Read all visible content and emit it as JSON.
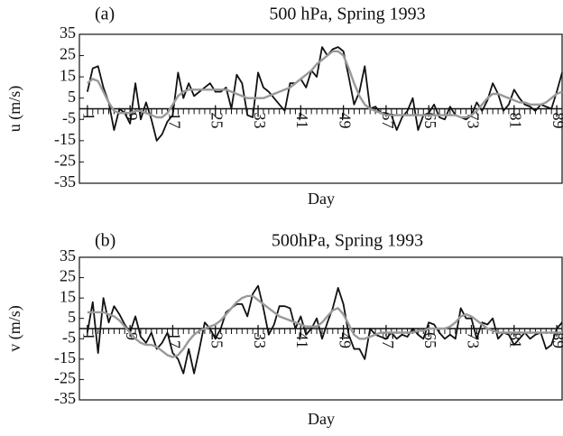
{
  "chart_data": [
    {
      "type": "line",
      "panel_label": "(a)",
      "title": "500 hPa, Spring 1993",
      "y_label": "u (m/s)",
      "x_label": "Day",
      "x": [
        1,
        2,
        3,
        4,
        5,
        6,
        7,
        8,
        9,
        10,
        11,
        12,
        13,
        14,
        15,
        16,
        17,
        18,
        19,
        20,
        21,
        22,
        23,
        24,
        25,
        26,
        27,
        28,
        29,
        30,
        31,
        32,
        33,
        34,
        35,
        36,
        37,
        38,
        39,
        40,
        41,
        42,
        43,
        44,
        45,
        46,
        47,
        48,
        49,
        50,
        51,
        52,
        53,
        54,
        55,
        56,
        57,
        58,
        59,
        60,
        61,
        62,
        63,
        64,
        65,
        66,
        67,
        68,
        69,
        70,
        71,
        72,
        73,
        74,
        75,
        76,
        77,
        78,
        79,
        80,
        81,
        82,
        83,
        84,
        85,
        86,
        87,
        88,
        89,
        90
      ],
      "series": [
        {
          "color": "#111111",
          "values": [
            8,
            19,
            20,
            10,
            3,
            -10,
            0,
            -2,
            -7,
            12,
            -5,
            3,
            -5,
            -15,
            -12,
            -6,
            -3,
            17,
            5,
            12,
            6,
            8,
            10,
            12,
            8,
            8,
            10,
            0,
            16,
            12,
            -3,
            -4,
            17,
            10,
            8,
            5,
            2,
            -1,
            12,
            12,
            14,
            10,
            18,
            15,
            29,
            25,
            28,
            29,
            27,
            15,
            2,
            8,
            20,
            0,
            1,
            -2,
            -2,
            -3,
            -10,
            -4,
            -1,
            5,
            -10,
            -3,
            -2,
            2,
            -4,
            -5,
            1,
            -3,
            -4,
            -5,
            -3,
            3,
            -1,
            4,
            12,
            7,
            -1,
            2,
            9,
            5,
            2,
            1,
            -1,
            2,
            1,
            0,
            8,
            17
          ]
        },
        {
          "color": "#999999",
          "values": [
            12,
            14,
            13,
            8,
            3,
            -1,
            -2,
            -2,
            -2,
            -1,
            -1,
            -2,
            -3,
            -4,
            -4,
            -2,
            2,
            6,
            8,
            9,
            9,
            9,
            9,
            9,
            9,
            9,
            9,
            8,
            7,
            6,
            5,
            5,
            5,
            5,
            6,
            7,
            8,
            9,
            10,
            12,
            14,
            16,
            18,
            21,
            23,
            25,
            27,
            27,
            25,
            19,
            12,
            6,
            2,
            0,
            -1,
            -2,
            -3,
            -3,
            -3,
            -3,
            -3,
            -3,
            -3,
            -3,
            -3,
            -3,
            -3,
            -3,
            -3,
            -3,
            -4,
            -4,
            -3,
            -1,
            2,
            5,
            7,
            7,
            6,
            5,
            4,
            3,
            3,
            2,
            2,
            2,
            3,
            5,
            7,
            8
          ]
        }
      ],
      "xlim": [
        -0.5,
        90
      ],
      "xticks": [
        1,
        9,
        17,
        25,
        33,
        41,
        49,
        57,
        65,
        73,
        81,
        89
      ],
      "ylim": [
        -35,
        35
      ],
      "yticks": [
        35,
        25,
        15,
        5,
        -5,
        -15,
        -25,
        -35
      ]
    },
    {
      "type": "line",
      "panel_label": "(b)",
      "title": "500hPa, Spring 1993",
      "y_label": "v (m/s)",
      "x_label": "Day",
      "x": [
        1,
        2,
        3,
        4,
        5,
        6,
        7,
        8,
        9,
        10,
        11,
        12,
        13,
        14,
        15,
        16,
        17,
        18,
        19,
        20,
        21,
        22,
        23,
        24,
        25,
        26,
        27,
        28,
        29,
        30,
        31,
        32,
        33,
        34,
        35,
        36,
        37,
        38,
        39,
        40,
        41,
        42,
        43,
        44,
        45,
        46,
        47,
        48,
        49,
        50,
        51,
        52,
        53,
        54,
        55,
        56,
        57,
        58,
        59,
        60,
        61,
        62,
        63,
        64,
        65,
        66,
        67,
        68,
        69,
        70,
        71,
        72,
        73,
        74,
        75,
        76,
        77,
        78,
        79,
        80,
        81,
        82,
        83,
        84,
        85,
        86,
        87,
        88,
        89,
        90
      ],
      "series": [
        {
          "color": "#111111",
          "values": [
            -2,
            13,
            -12,
            15,
            3,
            11,
            7,
            2,
            -2,
            6,
            -4,
            -7,
            -2,
            -10,
            -7,
            -2,
            -12,
            -15,
            -22,
            -10,
            -22,
            -10,
            3,
            0,
            -5,
            0,
            8,
            10,
            12,
            12,
            6,
            17,
            21,
            10,
            -3,
            2,
            11,
            11,
            10,
            0,
            6,
            -3,
            0,
            5,
            -5,
            3,
            10,
            20,
            12,
            -3,
            -10,
            -10,
            -15,
            0,
            -3,
            -4,
            -5,
            -2,
            -5,
            -3,
            -4,
            0,
            -3,
            -5,
            3,
            2,
            -2,
            -5,
            -3,
            -5,
            10,
            5,
            5,
            -5,
            3,
            2,
            5,
            -5,
            -2,
            -3,
            -8,
            -5,
            -2,
            -5,
            -3,
            -2,
            -10,
            -8,
            0,
            3
          ]
        },
        {
          "color": "#999999",
          "values": [
            8,
            8,
            8,
            8,
            7,
            6,
            4,
            1,
            -2,
            -5,
            -7,
            -8,
            -8,
            -9,
            -11,
            -13,
            -14,
            -13,
            -10,
            -6,
            -3,
            -1,
            0,
            1,
            2,
            4,
            7,
            10,
            13,
            15,
            16,
            16,
            14,
            12,
            10,
            8,
            6,
            5,
            4,
            3,
            2,
            1,
            1,
            1,
            3,
            6,
            9,
            10,
            7,
            2,
            -3,
            -5,
            -5,
            -4,
            -3,
            -2,
            -2,
            -2,
            -2,
            -2,
            -2,
            -2,
            -1,
            -1,
            0,
            0,
            0,
            0,
            1,
            3,
            6,
            7,
            6,
            4,
            2,
            0,
            -1,
            -2,
            -2,
            -2,
            -2,
            -2,
            -2,
            -2,
            -2,
            -2,
            -2,
            -2,
            -2,
            -2
          ]
        }
      ],
      "xlim": [
        -0.5,
        90
      ],
      "xticks": [
        1,
        9,
        17,
        25,
        33,
        41,
        49,
        57,
        65,
        73,
        81,
        89
      ],
      "ylim": [
        -35,
        35
      ],
      "yticks": [
        35,
        25,
        15,
        5,
        -5,
        -15,
        -25,
        -35
      ]
    }
  ]
}
